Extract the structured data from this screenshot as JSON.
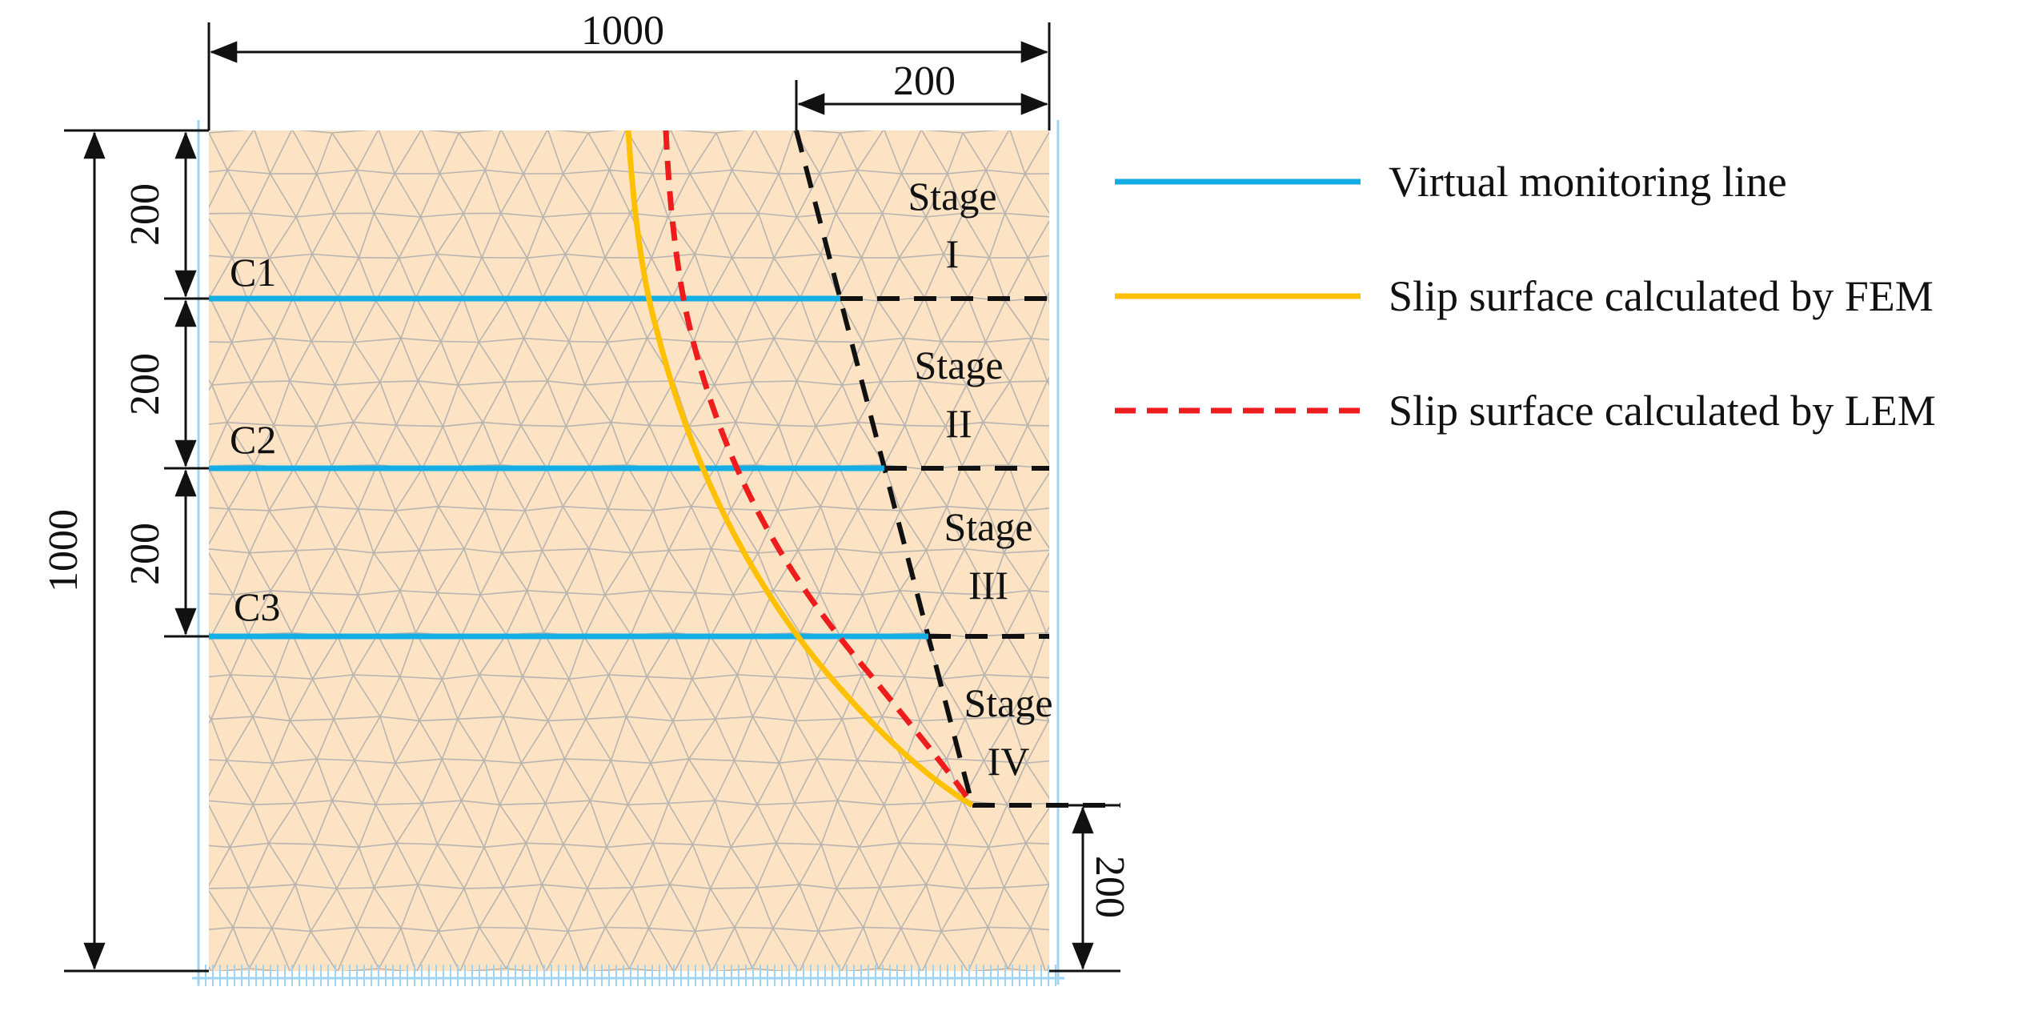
{
  "figure": {
    "colors": {
      "soil_fill": "#fbe3c4",
      "mesh_line": "#b9b4b0",
      "boundary": "#9fd3f0",
      "monitoring_line": "#14aee6",
      "fem_slip": "#ffc000",
      "lem_slip": "#ee1c1c",
      "stage_divider": "#111111",
      "dimension_line": "#111111"
    },
    "dimensions": {
      "total_width": "1000",
      "top_right_width": "200",
      "total_height": "1000",
      "segment_1": "200",
      "segment_2": "200",
      "segment_3": "200",
      "bottom_right_height": "200"
    },
    "monitoring_lines": [
      {
        "label": "C1"
      },
      {
        "label": "C2"
      },
      {
        "label": "C3"
      }
    ],
    "stages": [
      {
        "word": "Stage",
        "numeral": "I"
      },
      {
        "word": "Stage",
        "numeral": "II"
      },
      {
        "word": "Stage",
        "numeral": "III"
      },
      {
        "word": "Stage",
        "numeral": "IV"
      }
    ],
    "legend": [
      {
        "icon": "solid-blue-line",
        "label": "Virtual monitoring line"
      },
      {
        "icon": "solid-yellow-line",
        "label": "Slip surface calculated by FEM"
      },
      {
        "icon": "dashed-red-line",
        "label": "Slip surface calculated by LEM"
      }
    ]
  }
}
